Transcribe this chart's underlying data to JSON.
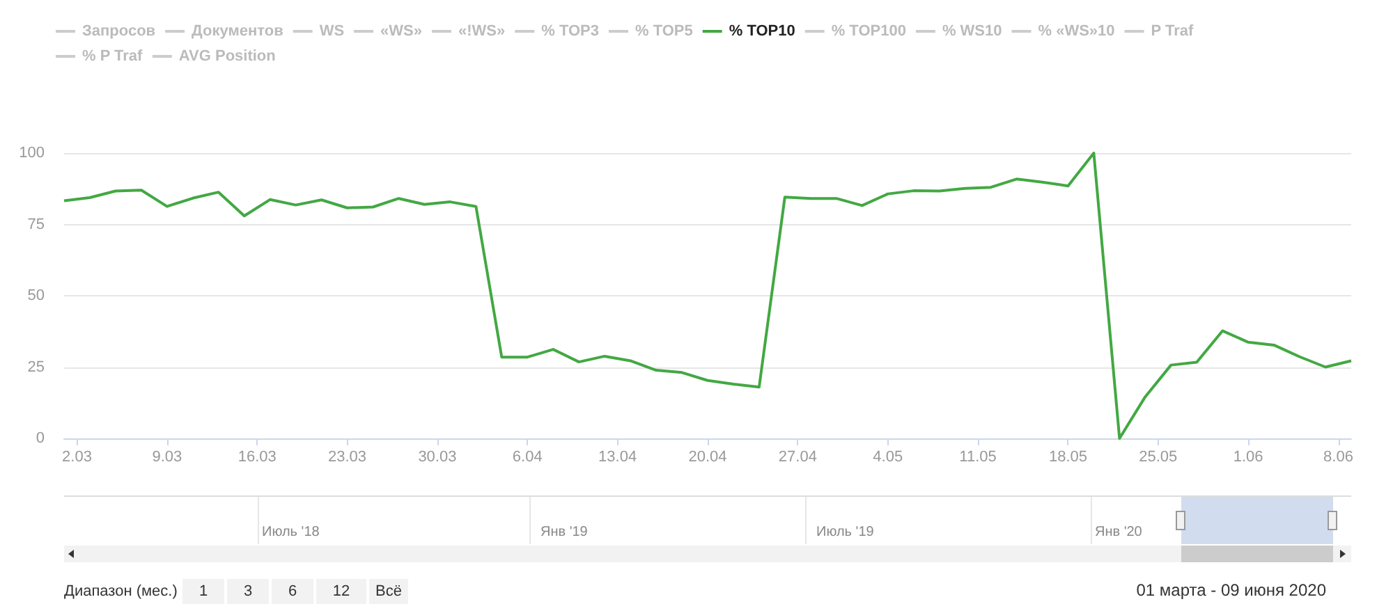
{
  "chart_data": {
    "type": "line",
    "x": [
      "2020-03-01",
      "2020-03-03",
      "2020-03-05",
      "2020-03-07",
      "2020-03-09",
      "2020-03-11",
      "2020-03-13",
      "2020-03-15",
      "2020-03-17",
      "2020-03-19",
      "2020-03-21",
      "2020-03-23",
      "2020-03-25",
      "2020-03-27",
      "2020-03-29",
      "2020-03-31",
      "2020-04-02",
      "2020-04-04",
      "2020-04-06",
      "2020-04-08",
      "2020-04-10",
      "2020-04-12",
      "2020-04-14",
      "2020-04-16",
      "2020-04-18",
      "2020-04-20",
      "2020-04-22",
      "2020-04-24",
      "2020-04-26",
      "2020-04-28",
      "2020-04-30",
      "2020-05-02",
      "2020-05-04",
      "2020-05-06",
      "2020-05-08",
      "2020-05-10",
      "2020-05-12",
      "2020-05-14",
      "2020-05-16",
      "2020-05-18",
      "2020-05-20",
      "2020-05-22",
      "2020-05-24",
      "2020-05-26",
      "2020-05-28",
      "2020-05-30",
      "2020-06-01",
      "2020-06-03",
      "2020-06-05",
      "2020-06-07",
      "2020-06-09"
    ],
    "series": [
      {
        "name": "Запросов",
        "color": "#cccccc",
        "values": [
          null,
          null,
          null,
          null,
          null,
          null,
          null,
          null,
          null,
          null,
          null,
          null,
          null,
          null,
          null,
          null,
          null,
          null,
          null,
          null,
          null,
          null,
          null,
          null,
          null,
          null,
          null,
          null,
          null,
          null,
          null,
          null,
          null,
          null,
          null,
          null,
          null,
          null,
          null,
          null,
          null,
          null,
          null,
          null,
          null,
          null,
          null,
          null,
          null,
          null,
          null
        ]
      },
      {
        "name": "Документов",
        "color": "#cccccc",
        "values": [
          null,
          null,
          null,
          null,
          null,
          null,
          null,
          null,
          null,
          null,
          null,
          null,
          null,
          null,
          null,
          null,
          null,
          null,
          null,
          null,
          null,
          null,
          null,
          null,
          null,
          null,
          null,
          null,
          null,
          null,
          null,
          null,
          null,
          null,
          null,
          null,
          null,
          null,
          null,
          null,
          null,
          null,
          null,
          null,
          null,
          null,
          null,
          null,
          null,
          null,
          null
        ]
      },
      {
        "name": "WS",
        "color": "#cccccc",
        "values": [
          null,
          null,
          null,
          null,
          null,
          null,
          null,
          null,
          null,
          null,
          null,
          null,
          null,
          null,
          null,
          null,
          null,
          null,
          null,
          null,
          null,
          null,
          null,
          null,
          null,
          null,
          null,
          null,
          null,
          null,
          null,
          null,
          null,
          null,
          null,
          null,
          null,
          null,
          null,
          null,
          null,
          null,
          null,
          null,
          null,
          null,
          null,
          null,
          null,
          null,
          null
        ]
      },
      {
        "name": "«WS»",
        "color": "#cccccc",
        "values": [
          null,
          null,
          null,
          null,
          null,
          null,
          null,
          null,
          null,
          null,
          null,
          null,
          null,
          null,
          null,
          null,
          null,
          null,
          null,
          null,
          null,
          null,
          null,
          null,
          null,
          null,
          null,
          null,
          null,
          null,
          null,
          null,
          null,
          null,
          null,
          null,
          null,
          null,
          null,
          null,
          null,
          null,
          null,
          null,
          null,
          null,
          null,
          null,
          null,
          null,
          null
        ]
      },
      {
        "name": "«!WS»",
        "color": "#cccccc",
        "values": [
          null,
          null,
          null,
          null,
          null,
          null,
          null,
          null,
          null,
          null,
          null,
          null,
          null,
          null,
          null,
          null,
          null,
          null,
          null,
          null,
          null,
          null,
          null,
          null,
          null,
          null,
          null,
          null,
          null,
          null,
          null,
          null,
          null,
          null,
          null,
          null,
          null,
          null,
          null,
          null,
          null,
          null,
          null,
          null,
          null,
          null,
          null,
          null,
          null,
          null,
          null
        ]
      },
      {
        "name": "% TOP3",
        "color": "#cccccc",
        "values": [
          null,
          null,
          null,
          null,
          null,
          null,
          null,
          null,
          null,
          null,
          null,
          null,
          null,
          null,
          null,
          null,
          null,
          null,
          null,
          null,
          null,
          null,
          null,
          null,
          null,
          null,
          null,
          null,
          null,
          null,
          null,
          null,
          null,
          null,
          null,
          null,
          null,
          null,
          null,
          null,
          null,
          null,
          null,
          null,
          null,
          null,
          null,
          null,
          null,
          null,
          null
        ]
      },
      {
        "name": "% TOP5",
        "color": "#cccccc",
        "values": [
          null,
          null,
          null,
          null,
          null,
          null,
          null,
          null,
          null,
          null,
          null,
          null,
          null,
          null,
          null,
          null,
          null,
          null,
          null,
          null,
          null,
          null,
          null,
          null,
          null,
          null,
          null,
          null,
          null,
          null,
          null,
          null,
          null,
          null,
          null,
          null,
          null,
          null,
          null,
          null,
          null,
          null,
          null,
          null,
          null,
          null,
          null,
          null,
          null,
          null,
          null
        ]
      },
      {
        "name": "% TOP10",
        "color": "#43a843",
        "values": [
          83.3,
          84.4,
          86.7,
          87.0,
          81.3,
          84.2,
          86.3,
          78.0,
          83.7,
          81.8,
          83.6,
          80.8,
          81.1,
          84.1,
          82.0,
          82.9,
          81.3,
          28.5,
          28.5,
          31.2,
          26.8,
          28.8,
          27.2,
          23.9,
          23.1,
          20.3,
          19.0,
          18.0,
          84.6,
          84.1,
          84.1,
          81.6,
          85.7,
          86.8,
          86.7,
          87.6,
          88.0,
          90.9,
          89.8,
          88.5,
          100,
          0,
          14.6,
          25.7,
          26.7,
          37.7,
          33.7,
          32.7,
          28.6,
          25.0,
          27.2
        ]
      },
      {
        "name": "% TOP100",
        "color": "#cccccc",
        "values": [
          null,
          null,
          null,
          null,
          null,
          null,
          null,
          null,
          null,
          null,
          null,
          null,
          null,
          null,
          null,
          null,
          null,
          null,
          null,
          null,
          null,
          null,
          null,
          null,
          null,
          null,
          null,
          null,
          null,
          null,
          null,
          null,
          null,
          null,
          null,
          null,
          null,
          null,
          null,
          null,
          null,
          null,
          null,
          null,
          null,
          null,
          null,
          null,
          null,
          null,
          null
        ]
      },
      {
        "name": "% WS10",
        "color": "#cccccc",
        "values": [
          null,
          null,
          null,
          null,
          null,
          null,
          null,
          null,
          null,
          null,
          null,
          null,
          null,
          null,
          null,
          null,
          null,
          null,
          null,
          null,
          null,
          null,
          null,
          null,
          null,
          null,
          null,
          null,
          null,
          null,
          null,
          null,
          null,
          null,
          null,
          null,
          null,
          null,
          null,
          null,
          null,
          null,
          null,
          null,
          null,
          null,
          null,
          null,
          null,
          null,
          null
        ]
      },
      {
        "name": "% «WS»10",
        "color": "#cccccc",
        "values": [
          null,
          null,
          null,
          null,
          null,
          null,
          null,
          null,
          null,
          null,
          null,
          null,
          null,
          null,
          null,
          null,
          null,
          null,
          null,
          null,
          null,
          null,
          null,
          null,
          null,
          null,
          null,
          null,
          null,
          null,
          null,
          null,
          null,
          null,
          null,
          null,
          null,
          null,
          null,
          null,
          null,
          null,
          null,
          null,
          null,
          null,
          null,
          null,
          null,
          null,
          null
        ]
      },
      {
        "name": "P Traf",
        "color": "#cccccc",
        "values": [
          null,
          null,
          null,
          null,
          null,
          null,
          null,
          null,
          null,
          null,
          null,
          null,
          null,
          null,
          null,
          null,
          null,
          null,
          null,
          null,
          null,
          null,
          null,
          null,
          null,
          null,
          null,
          null,
          null,
          null,
          null,
          null,
          null,
          null,
          null,
          null,
          null,
          null,
          null,
          null,
          null,
          null,
          null,
          null,
          null,
          null,
          null,
          null,
          null,
          null,
          null
        ]
      },
      {
        "name": "% P Traf",
        "color": "#cccccc",
        "values": [
          null,
          null,
          null,
          null,
          null,
          null,
          null,
          null,
          null,
          null,
          null,
          null,
          null,
          null,
          null,
          null,
          null,
          null,
          null,
          null,
          null,
          null,
          null,
          null,
          null,
          null,
          null,
          null,
          null,
          null,
          null,
          null,
          null,
          null,
          null,
          null,
          null,
          null,
          null,
          null,
          null,
          null,
          null,
          null,
          null,
          null,
          null,
          null,
          null,
          null,
          null
        ]
      },
      {
        "name": "AVG Position",
        "color": "#cccccc",
        "values": [
          null,
          null,
          null,
          null,
          null,
          null,
          null,
          null,
          null,
          null,
          null,
          null,
          null,
          null,
          null,
          null,
          null,
          null,
          null,
          null,
          null,
          null,
          null,
          null,
          null,
          null,
          null,
          null,
          null,
          null,
          null,
          null,
          null,
          null,
          null,
          null,
          null,
          null,
          null,
          null,
          null,
          null,
          null,
          null,
          null,
          null,
          null,
          null,
          null,
          null,
          null
        ]
      }
    ],
    "xlim": [
      "2020-03-01",
      "2020-06-09"
    ],
    "xticks": [
      {
        "value": "2020-03-02",
        "label": "2.03"
      },
      {
        "value": "2020-03-09",
        "label": "9.03"
      },
      {
        "value": "2020-03-16",
        "label": "16.03"
      },
      {
        "value": "2020-03-23",
        "label": "23.03"
      },
      {
        "value": "2020-03-30",
        "label": "30.03"
      },
      {
        "value": "2020-04-06",
        "label": "6.04"
      },
      {
        "value": "2020-04-13",
        "label": "13.04"
      },
      {
        "value": "2020-04-20",
        "label": "20.04"
      },
      {
        "value": "2020-04-27",
        "label": "27.04"
      },
      {
        "value": "2020-05-04",
        "label": "4.05"
      },
      {
        "value": "2020-05-11",
        "label": "11.05"
      },
      {
        "value": "2020-05-18",
        "label": "18.05"
      },
      {
        "value": "2020-05-25",
        "label": "25.05"
      },
      {
        "value": "2020-06-01",
        "label": "1.06"
      },
      {
        "value": "2020-06-08",
        "label": "8.06"
      }
    ],
    "ylim": [
      0,
      100
    ],
    "yticks": [
      0,
      25,
      50,
      75,
      100
    ],
    "grid": "y",
    "legend": "top left",
    "marker": "none",
    "line_style": "solid",
    "annotations": [
      "Июль '18",
      "Янв '19",
      "Июль '19",
      "Янв '20",
      "Диапазон (мес.)",
      "1",
      "3",
      "6",
      "12",
      "Всё",
      "01 марта - 09 июня 2020"
    ]
  }
}
